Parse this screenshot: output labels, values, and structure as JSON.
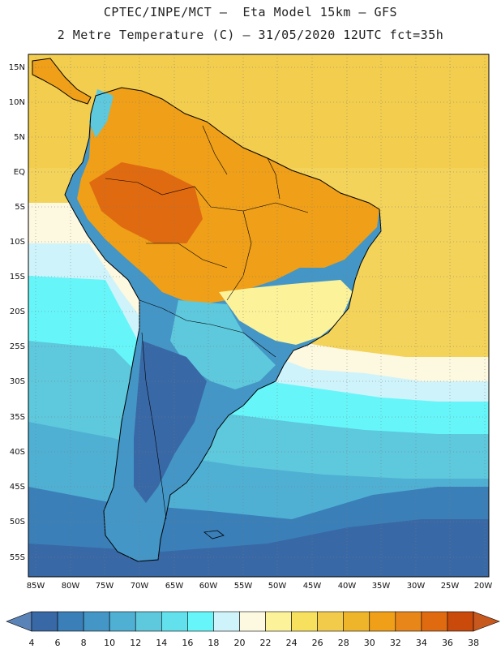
{
  "title": {
    "line1": "CPTEC/INPE/MCT –  Eta Model 15km – GFS",
    "line2": "2 Metre Temperature (C) – 31/05/2020 12UTC fct=35h"
  },
  "lat_labels": [
    "15N",
    "10N",
    "5N",
    "EQ",
    "5S",
    "10S",
    "15S",
    "20S",
    "25S",
    "30S",
    "35S",
    "40S",
    "45S",
    "50S",
    "55S"
  ],
  "lon_labels": [
    "85W",
    "80W",
    "75W",
    "70W",
    "65W",
    "60W",
    "55W",
    "50W",
    "45W",
    "40W",
    "35W",
    "30W",
    "25W",
    "20W"
  ],
  "colorbar": {
    "labels": [
      "4",
      "6",
      "8",
      "10",
      "12",
      "14",
      "16",
      "18",
      "20",
      "22",
      "24",
      "26",
      "28",
      "30",
      "32",
      "34",
      "36",
      "38"
    ],
    "colors": [
      "#5a83b8",
      "#3968a6",
      "#3a7fb8",
      "#4496c6",
      "#4fb0d4",
      "#5ec8dc",
      "#62e0ec",
      "#66f6fa",
      "#cff3fa",
      "#fdf8e0",
      "#fbf29a",
      "#f7e05e",
      "#f2cb4a",
      "#efb52a",
      "#ef9f18",
      "#e8861a",
      "#e06a10",
      "#c94a0a",
      "#c7581e"
    ]
  }
}
